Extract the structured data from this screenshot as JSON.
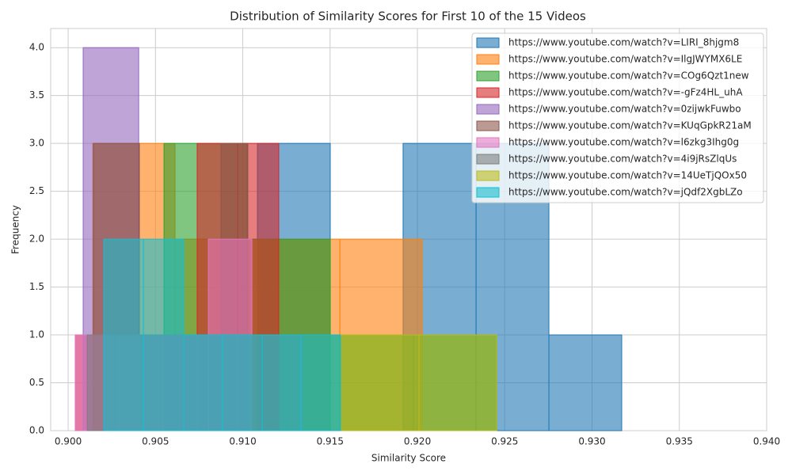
{
  "chart_data": {
    "type": "histogram",
    "title": "Distribution of Similarity Scores for First 10 of the 15 Videos",
    "x_label": "Similarity Score",
    "y_label": "Frequency",
    "xlim": [
      0.899,
      0.94
    ],
    "ylim": [
      0,
      4.2
    ],
    "xticks": [
      {
        "value": 0.9,
        "label": "0.900"
      },
      {
        "value": 0.905,
        "label": "0.905"
      },
      {
        "value": 0.91,
        "label": "0.910"
      },
      {
        "value": 0.915,
        "label": "0.915"
      },
      {
        "value": 0.92,
        "label": "0.920"
      },
      {
        "value": 0.925,
        "label": "0.925"
      },
      {
        "value": 0.93,
        "label": "0.930"
      },
      {
        "value": 0.935,
        "label": "0.935"
      },
      {
        "value": 0.94,
        "label": "0.940"
      }
    ],
    "yticks": [
      {
        "value": 0,
        "label": "0.0"
      },
      {
        "value": 0.5,
        "label": "0.5"
      },
      {
        "value": 1,
        "label": "1.0"
      },
      {
        "value": 1.5,
        "label": "1.5"
      },
      {
        "value": 2,
        "label": "2.0"
      },
      {
        "value": 2.5,
        "label": "2.5"
      },
      {
        "value": 3,
        "label": "3.0"
      },
      {
        "value": 3.5,
        "label": "3.5"
      },
      {
        "value": 4,
        "label": "4.0"
      }
    ],
    "grid": true,
    "legend": "upper right",
    "series": [
      {
        "name": "https://www.youtube.com/watch?v=LIRI_8hjgm8",
        "color": "#1f77b4",
        "bins": [
          0.91084,
          0.91501,
          0.91918,
          0.92336,
          0.92753,
          0.9317
        ],
        "values": [
          3,
          0,
          3,
          3,
          1
        ]
      },
      {
        "name": "https://www.youtube.com/watch?v=IlgJWYMX6LE",
        "color": "#ff7f0e",
        "bins": [
          0.90141,
          0.90612,
          0.91084,
          0.91556,
          0.92027
        ],
        "values": [
          3,
          2,
          2,
          2
        ]
      },
      {
        "name": "https://www.youtube.com/watch?v=COg6Qzt1new",
        "color": "#2ca02c",
        "bins": [
          0.90549,
          0.91025,
          0.91501,
          0.91977,
          0.92454
        ],
        "values": [
          3,
          2,
          1,
          1
        ]
      },
      {
        "name": "https://www.youtube.com/watch?v=-gFz4HL_uhA",
        "color": "#d62728",
        "bins": [
          0.90041,
          0.90272,
          0.90508,
          0.90739,
          0.90971,
          0.91206
        ],
        "values": [
          1,
          1,
          1,
          3,
          3
        ]
      },
      {
        "name": "https://www.youtube.com/watch?v=0zijwkFuwbo",
        "color": "#9467bd",
        "bins": [
          0.90086,
          0.90404,
          0.90721,
          0.91039
        ],
        "values": [
          4,
          1,
          1
        ]
      },
      {
        "name": "https://www.youtube.com/watch?v=KUqGpkR21aM",
        "color": "#8c564b",
        "bins": [
          0.90145,
          0.90408,
          0.90644,
          0.90875,
          0.91029
        ],
        "values": [
          3,
          1,
          1,
          3
        ]
      },
      {
        "name": "https://www.youtube.com/watch?v=l6zkg3Ihg0g",
        "color": "#e377c2",
        "bins": [
          0.90041,
          0.9029,
          0.90544,
          0.90803,
          0.91052
        ],
        "values": [
          1,
          1,
          1,
          2
        ]
      },
      {
        "name": "https://www.youtube.com/watch?v=4i9jRsZlqUs",
        "color": "#7f7f7f",
        "bins": [
          0.90109,
          0.90417,
          0.90726,
          0.91034,
          0.91342
        ],
        "values": [
          1,
          1,
          1,
          1
        ]
      },
      {
        "name": "https://www.youtube.com/watch?v=14UeTjQOx50",
        "color": "#bcbd22",
        "bins": [
          0.9156,
          0.92009,
          0.92454
        ],
        "values": [
          1,
          1
        ]
      },
      {
        "name": "https://www.youtube.com/watch?v=jQdf2XgbLZo",
        "color": "#17becf",
        "bins": [
          0.90204,
          0.90431,
          0.90662,
          0.90884,
          0.91111,
          0.91333,
          0.9156
        ],
        "values": [
          2,
          2,
          1,
          1,
          1,
          1
        ]
      }
    ]
  }
}
